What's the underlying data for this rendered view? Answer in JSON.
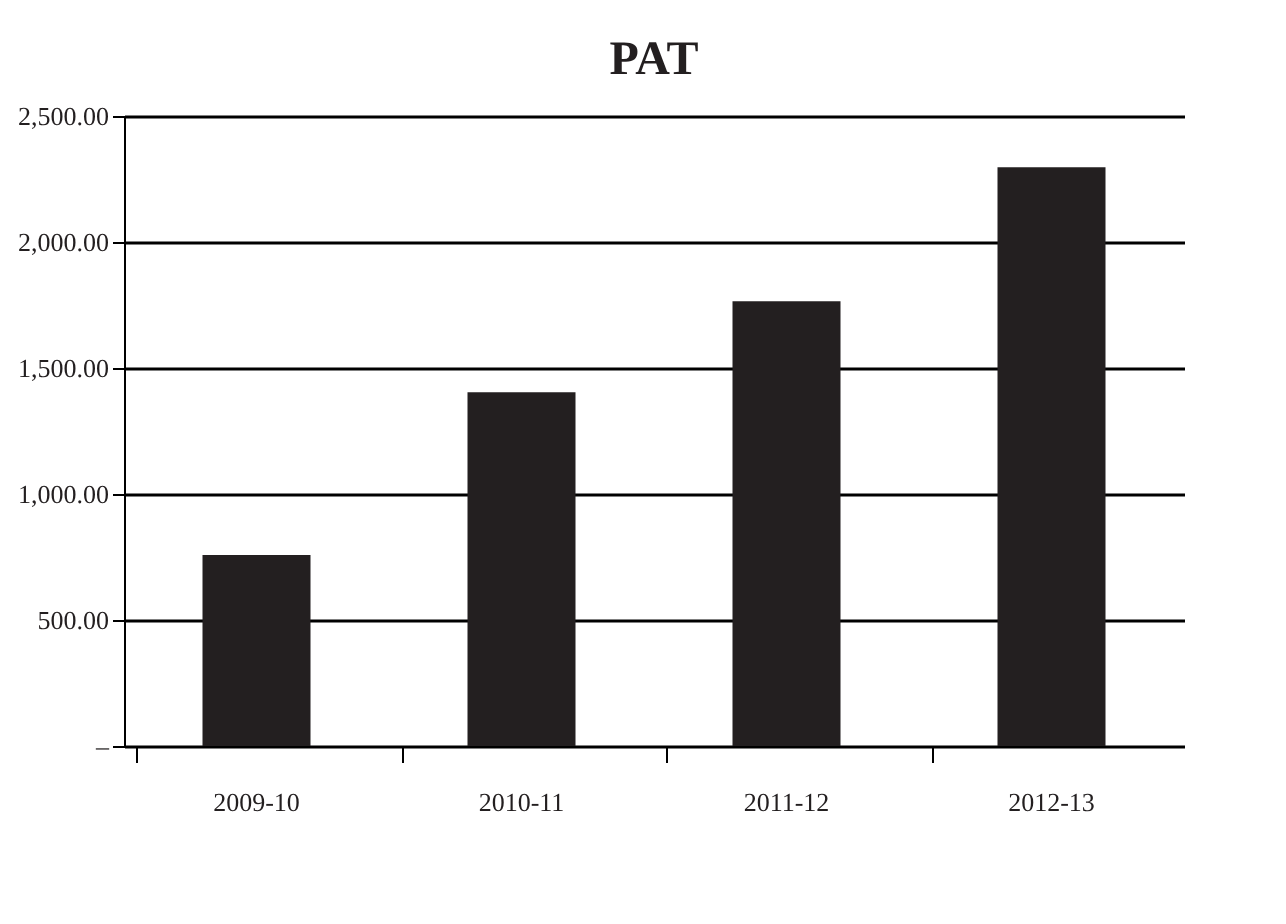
{
  "chart_data": {
    "type": "bar",
    "title": "PAT",
    "categories": [
      "2009-10",
      "2010-11",
      "2011-12",
      "2012-13"
    ],
    "values": [
      758,
      1404,
      1765,
      2297
    ],
    "color": "#231f20",
    "ylim": [
      0,
      2500
    ],
    "yticks": [
      {
        "value": 0,
        "label": "–"
      },
      {
        "value": 500,
        "label": "500.00"
      },
      {
        "value": 1000,
        "label": "1,000.00"
      },
      {
        "value": 1500,
        "label": "1,500.00"
      },
      {
        "value": 2000,
        "label": "2,000.00"
      },
      {
        "value": 2500,
        "label": "2,500.00"
      }
    ],
    "grid": "y"
  }
}
